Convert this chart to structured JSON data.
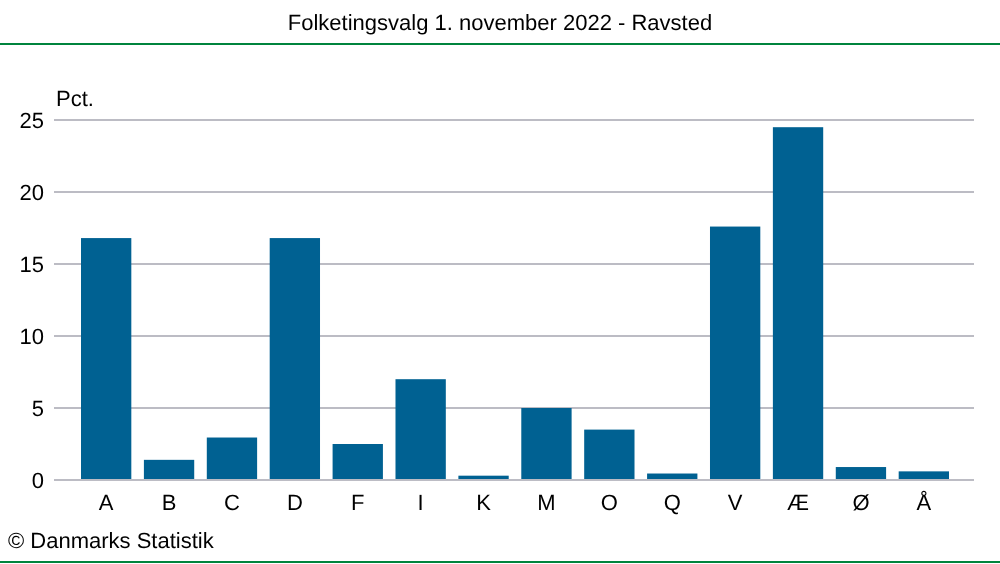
{
  "chart_data": {
    "type": "bar",
    "title": "Folketingsvalg 1. november 2022 - Ravsted",
    "ylabel": "Pct.",
    "categories": [
      "A",
      "B",
      "C",
      "D",
      "F",
      "I",
      "K",
      "M",
      "O",
      "Q",
      "V",
      "Æ",
      "Ø",
      "Å"
    ],
    "values": [
      16.8,
      1.4,
      2.95,
      16.8,
      2.5,
      7.0,
      0.3,
      5.0,
      3.5,
      0.45,
      17.6,
      24.5,
      0.9,
      0.6
    ],
    "color": "#006192",
    "ylim": [
      0,
      25
    ],
    "yticks": [
      0,
      5,
      10,
      15,
      20,
      25
    ],
    "grid": "y",
    "annotations": [
      "© Danmarks Statistik"
    ]
  }
}
